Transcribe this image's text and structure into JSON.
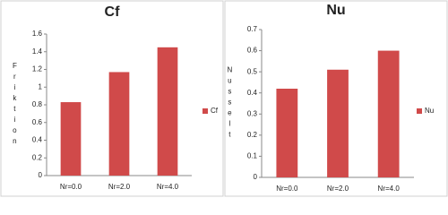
{
  "chart_data": [
    {
      "type": "bar",
      "title": "Cf",
      "y_label": "Friktion",
      "categories": [
        "Nr=0.0",
        "Nr=2.0",
        "Nr=4.0"
      ],
      "series": [
        {
          "name": "Cf",
          "color": "#d04a4a",
          "values": [
            0.83,
            1.17,
            1.45
          ]
        }
      ],
      "ylim": [
        0,
        1.6
      ],
      "yticks": [
        0,
        0.2,
        0.4,
        0.6,
        0.8,
        1,
        1.2,
        1.4,
        1.6
      ],
      "grid": false,
      "legend": "right"
    },
    {
      "type": "bar",
      "title": "Nu",
      "y_label": "Nusselt",
      "categories": [
        "Nr=0.0",
        "Nr=2.0",
        "Nr=4.0"
      ],
      "series": [
        {
          "name": "Nu",
          "color": "#d04a4a",
          "values": [
            0.42,
            0.51,
            0.6
          ]
        }
      ],
      "ylim": [
        0,
        0.7
      ],
      "yticks": [
        0,
        0.1,
        0.2,
        0.3,
        0.4,
        0.5,
        0.6,
        0.7
      ],
      "grid": false,
      "legend": "right"
    }
  ]
}
